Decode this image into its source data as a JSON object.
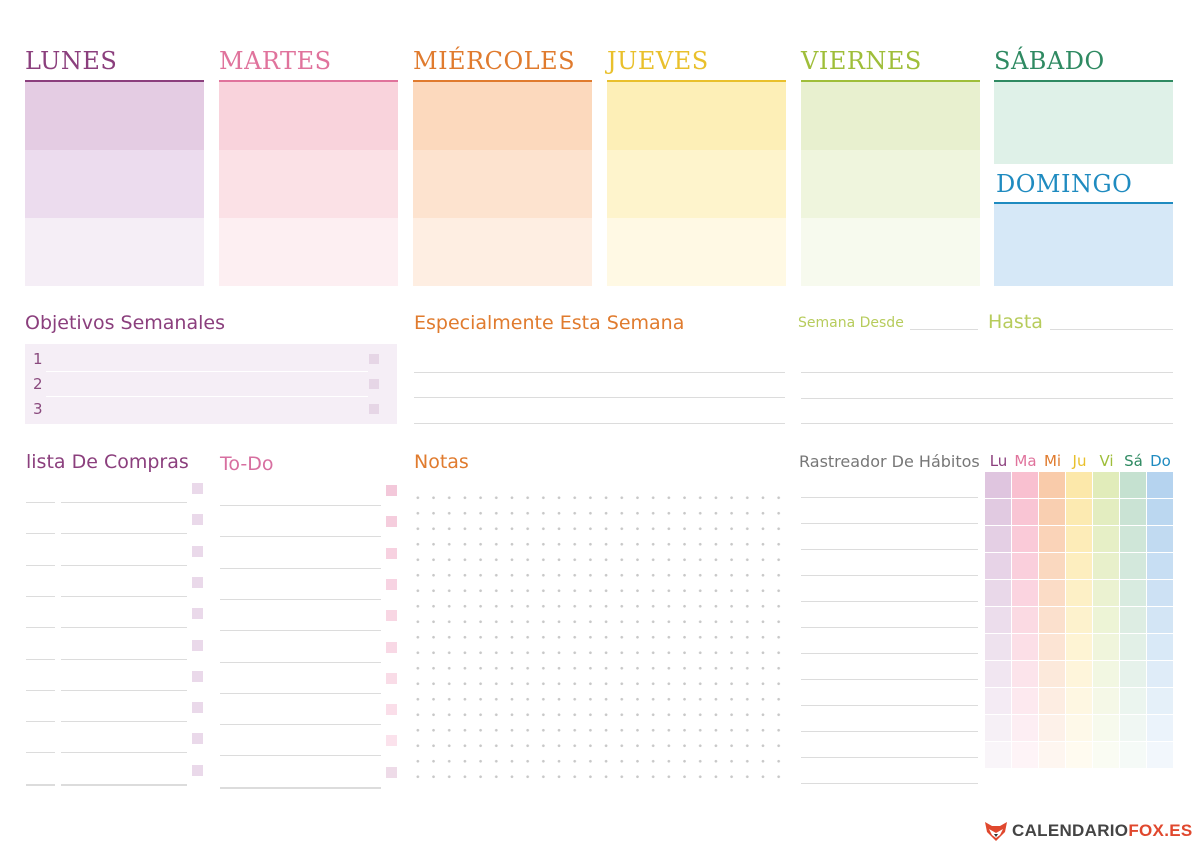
{
  "days": [
    {
      "name": "LUNES",
      "color": "#8b3f7d",
      "bands": [
        "#e4cce3",
        "#ecdcee",
        "#f5eef6"
      ]
    },
    {
      "name": "MARTES",
      "color": "#e0739c",
      "bands": [
        "#f9d3dc",
        "#fbe1e6",
        "#fdeff2"
      ]
    },
    {
      "name": "MIÉRCOLES",
      "color": "#e07b2e",
      "bands": [
        "#fcd9bd",
        "#fde3cf",
        "#feeee2"
      ]
    },
    {
      "name": "JUEVES",
      "color": "#e9c02c",
      "bands": [
        "#fdefb7",
        "#fef4cc",
        "#fff9e4"
      ]
    },
    {
      "name": "VIERNES",
      "color": "#9fbe3a",
      "bands": [
        "#e8f0cf",
        "#eff5dd",
        "#f7faee"
      ]
    }
  ],
  "sabado": {
    "name": "SÁBADO",
    "color": "#2f8a62",
    "band": "#dff1e8"
  },
  "domingo": {
    "name": "DOMINGO",
    "color": "#1f8bc0",
    "band": "#d6e8f7"
  },
  "objetivos": {
    "title": "Objetivos Semanales",
    "items": [
      "1",
      "2",
      "3"
    ],
    "color": "#8b3f7d"
  },
  "especialmente": {
    "title": "Especialmente Esta Semana",
    "color": "#e07b2e"
  },
  "semana": {
    "desde": "Semana Desde",
    "hasta": "Hasta",
    "color": "#b7cc5c"
  },
  "compras": {
    "title": "lista De Compras",
    "color": "#8b3f7d"
  },
  "todo": {
    "title": "To-Do",
    "color": "#d76fa0"
  },
  "notas": {
    "title": "Notas",
    "color": "#e07b2e"
  },
  "habitos": {
    "title": "Rastreador De Hábitos",
    "color": "#777777",
    "days": [
      {
        "label": "Lu",
        "color": "#8b3f7d"
      },
      {
        "label": "Ma",
        "color": "#e0739c"
      },
      {
        "label": "Mi",
        "color": "#e07b2e"
      },
      {
        "label": "Ju",
        "color": "#e9c02c"
      },
      {
        "label": "Vi",
        "color": "#9fbe3a"
      },
      {
        "label": "Sá",
        "color": "#2f8a62"
      },
      {
        "label": "Do",
        "color": "#1f8bc0"
      }
    ]
  },
  "brand": {
    "part1": "CALENDARIO",
    "part2": "FOX.ES",
    "color1": "#444444",
    "color2": "#e0482e"
  }
}
